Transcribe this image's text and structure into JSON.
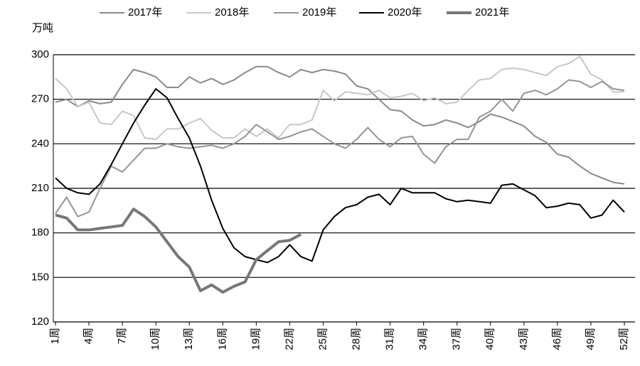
{
  "chart_data": {
    "type": "line",
    "y_label": "万吨",
    "categories": [
      "1周",
      null,
      null,
      "4周",
      null,
      null,
      "7周",
      null,
      null,
      "10周",
      null,
      null,
      "13周",
      null,
      null,
      "16周",
      null,
      null,
      "19周",
      null,
      null,
      "22周",
      null,
      null,
      "25周",
      null,
      null,
      "28周",
      null,
      null,
      "31周",
      null,
      null,
      "34周",
      null,
      null,
      "37周",
      null,
      null,
      "40周",
      null,
      null,
      "43周",
      null,
      null,
      "46周",
      null,
      null,
      "49周",
      null,
      null,
      "52周"
    ],
    "series": [
      {
        "name": "2017年",
        "color": "#8a8a8a",
        "width": 2,
        "values": [
          268,
          270,
          265,
          269,
          267,
          268,
          280,
          290,
          288,
          285,
          278,
          278,
          285,
          281,
          284,
          280,
          283,
          288,
          292,
          292,
          288,
          285,
          290,
          288,
          290,
          289,
          287,
          279,
          277,
          270,
          263,
          262,
          256,
          252,
          253,
          256,
          254,
          251,
          255,
          260,
          258,
          255,
          252,
          245,
          241,
          233,
          231,
          225,
          220,
          217,
          214,
          213
        ]
      },
      {
        "name": "2018年",
        "color": "#c8c8c8",
        "width": 2,
        "values": [
          284,
          277,
          265,
          268,
          254,
          253,
          262,
          259,
          244,
          243,
          250,
          250,
          254,
          257,
          249,
          244,
          244,
          250,
          245,
          250,
          244,
          253,
          253,
          256,
          276,
          269,
          275,
          274,
          273,
          276,
          271,
          272,
          274,
          269,
          271,
          267,
          268,
          276,
          283,
          284,
          290,
          291,
          290,
          288,
          286,
          292,
          294,
          299,
          287,
          283,
          275,
          275
        ]
      },
      {
        "name": "2019年",
        "color": "#959595",
        "width": 2,
        "values": [
          193,
          204,
          191,
          194,
          210,
          225,
          221,
          229,
          237,
          237,
          240,
          238,
          237,
          238,
          239,
          237,
          240,
          245,
          253,
          248,
          243,
          245,
          248,
          250,
          245,
          240,
          237,
          243,
          251,
          243,
          238,
          244,
          245,
          233,
          227,
          238,
          243,
          243,
          258,
          262,
          270,
          262,
          274,
          276,
          273,
          277,
          283,
          282,
          278,
          282,
          277,
          276
        ]
      },
      {
        "name": "2020年",
        "color": "#000000",
        "width": 2,
        "values": [
          217,
          210,
          207,
          206,
          213,
          226,
          240,
          254,
          266,
          277,
          271,
          257,
          244,
          225,
          202,
          183,
          170,
          164,
          162,
          160,
          164,
          172,
          164,
          161,
          182,
          191,
          197,
          199,
          204,
          206,
          199,
          210,
          207,
          207,
          207,
          203,
          201,
          202,
          201,
          200,
          212,
          213,
          209,
          205,
          197,
          198,
          200,
          199,
          190,
          192,
          202,
          194
        ]
      },
      {
        "name": "2021年",
        "color": "#777777",
        "width": 4,
        "values": [
          192,
          190,
          182,
          182,
          183,
          184,
          185,
          196,
          191,
          184,
          174,
          164,
          157,
          141,
          145,
          140,
          144,
          147,
          162,
          168,
          174,
          175,
          179,
          null,
          null,
          null,
          null,
          null,
          null,
          null,
          null,
          null,
          null,
          null,
          null,
          null,
          null,
          null,
          null,
          null,
          null,
          null,
          null,
          null,
          null,
          null,
          null,
          null,
          null,
          null,
          null,
          null
        ]
      }
    ],
    "ylim": [
      120,
      300
    ],
    "yticks": [
      120,
      150,
      180,
      210,
      240,
      270,
      300
    ],
    "grid": true,
    "legend": "top"
  }
}
